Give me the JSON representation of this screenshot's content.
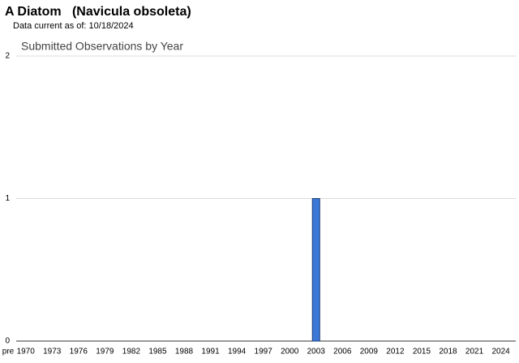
{
  "page": {
    "title": "A Diatom   (Navicula obsoleta)",
    "subtitle": "Data current as of: 10/18/2024"
  },
  "chart_data": {
    "type": "bar",
    "title": "Submitted Observations by Year",
    "categories": [
      "pre",
      null,
      "1970",
      null,
      null,
      "1973",
      null,
      null,
      "1976",
      null,
      null,
      "1979",
      null,
      null,
      "1982",
      null,
      null,
      "1985",
      null,
      null,
      "1988",
      null,
      null,
      "1991",
      null,
      null,
      "1994",
      null,
      null,
      "1997",
      null,
      null,
      "2000",
      null,
      null,
      "2003",
      null,
      null,
      "2006",
      null,
      null,
      "2009",
      null,
      null,
      "2012",
      null,
      null,
      "2015",
      null,
      null,
      "2018",
      null,
      null,
      "2021",
      null,
      null,
      "2024"
    ],
    "values": [
      0,
      0,
      0,
      0,
      0,
      0,
      0,
      0,
      0,
      0,
      0,
      0,
      0,
      0,
      0,
      0,
      0,
      0,
      0,
      0,
      0,
      0,
      0,
      0,
      0,
      0,
      0,
      0,
      0,
      0,
      0,
      0,
      0,
      0,
      0,
      1,
      0,
      0,
      0,
      0,
      0,
      0,
      0,
      0,
      0,
      0,
      0,
      0,
      0,
      0,
      0,
      0,
      0,
      0,
      0,
      0,
      0
    ],
    "color": "#3c78d8",
    "ylim": [
      0,
      2
    ],
    "yticks": [
      0,
      1,
      2
    ],
    "grid": true
  }
}
